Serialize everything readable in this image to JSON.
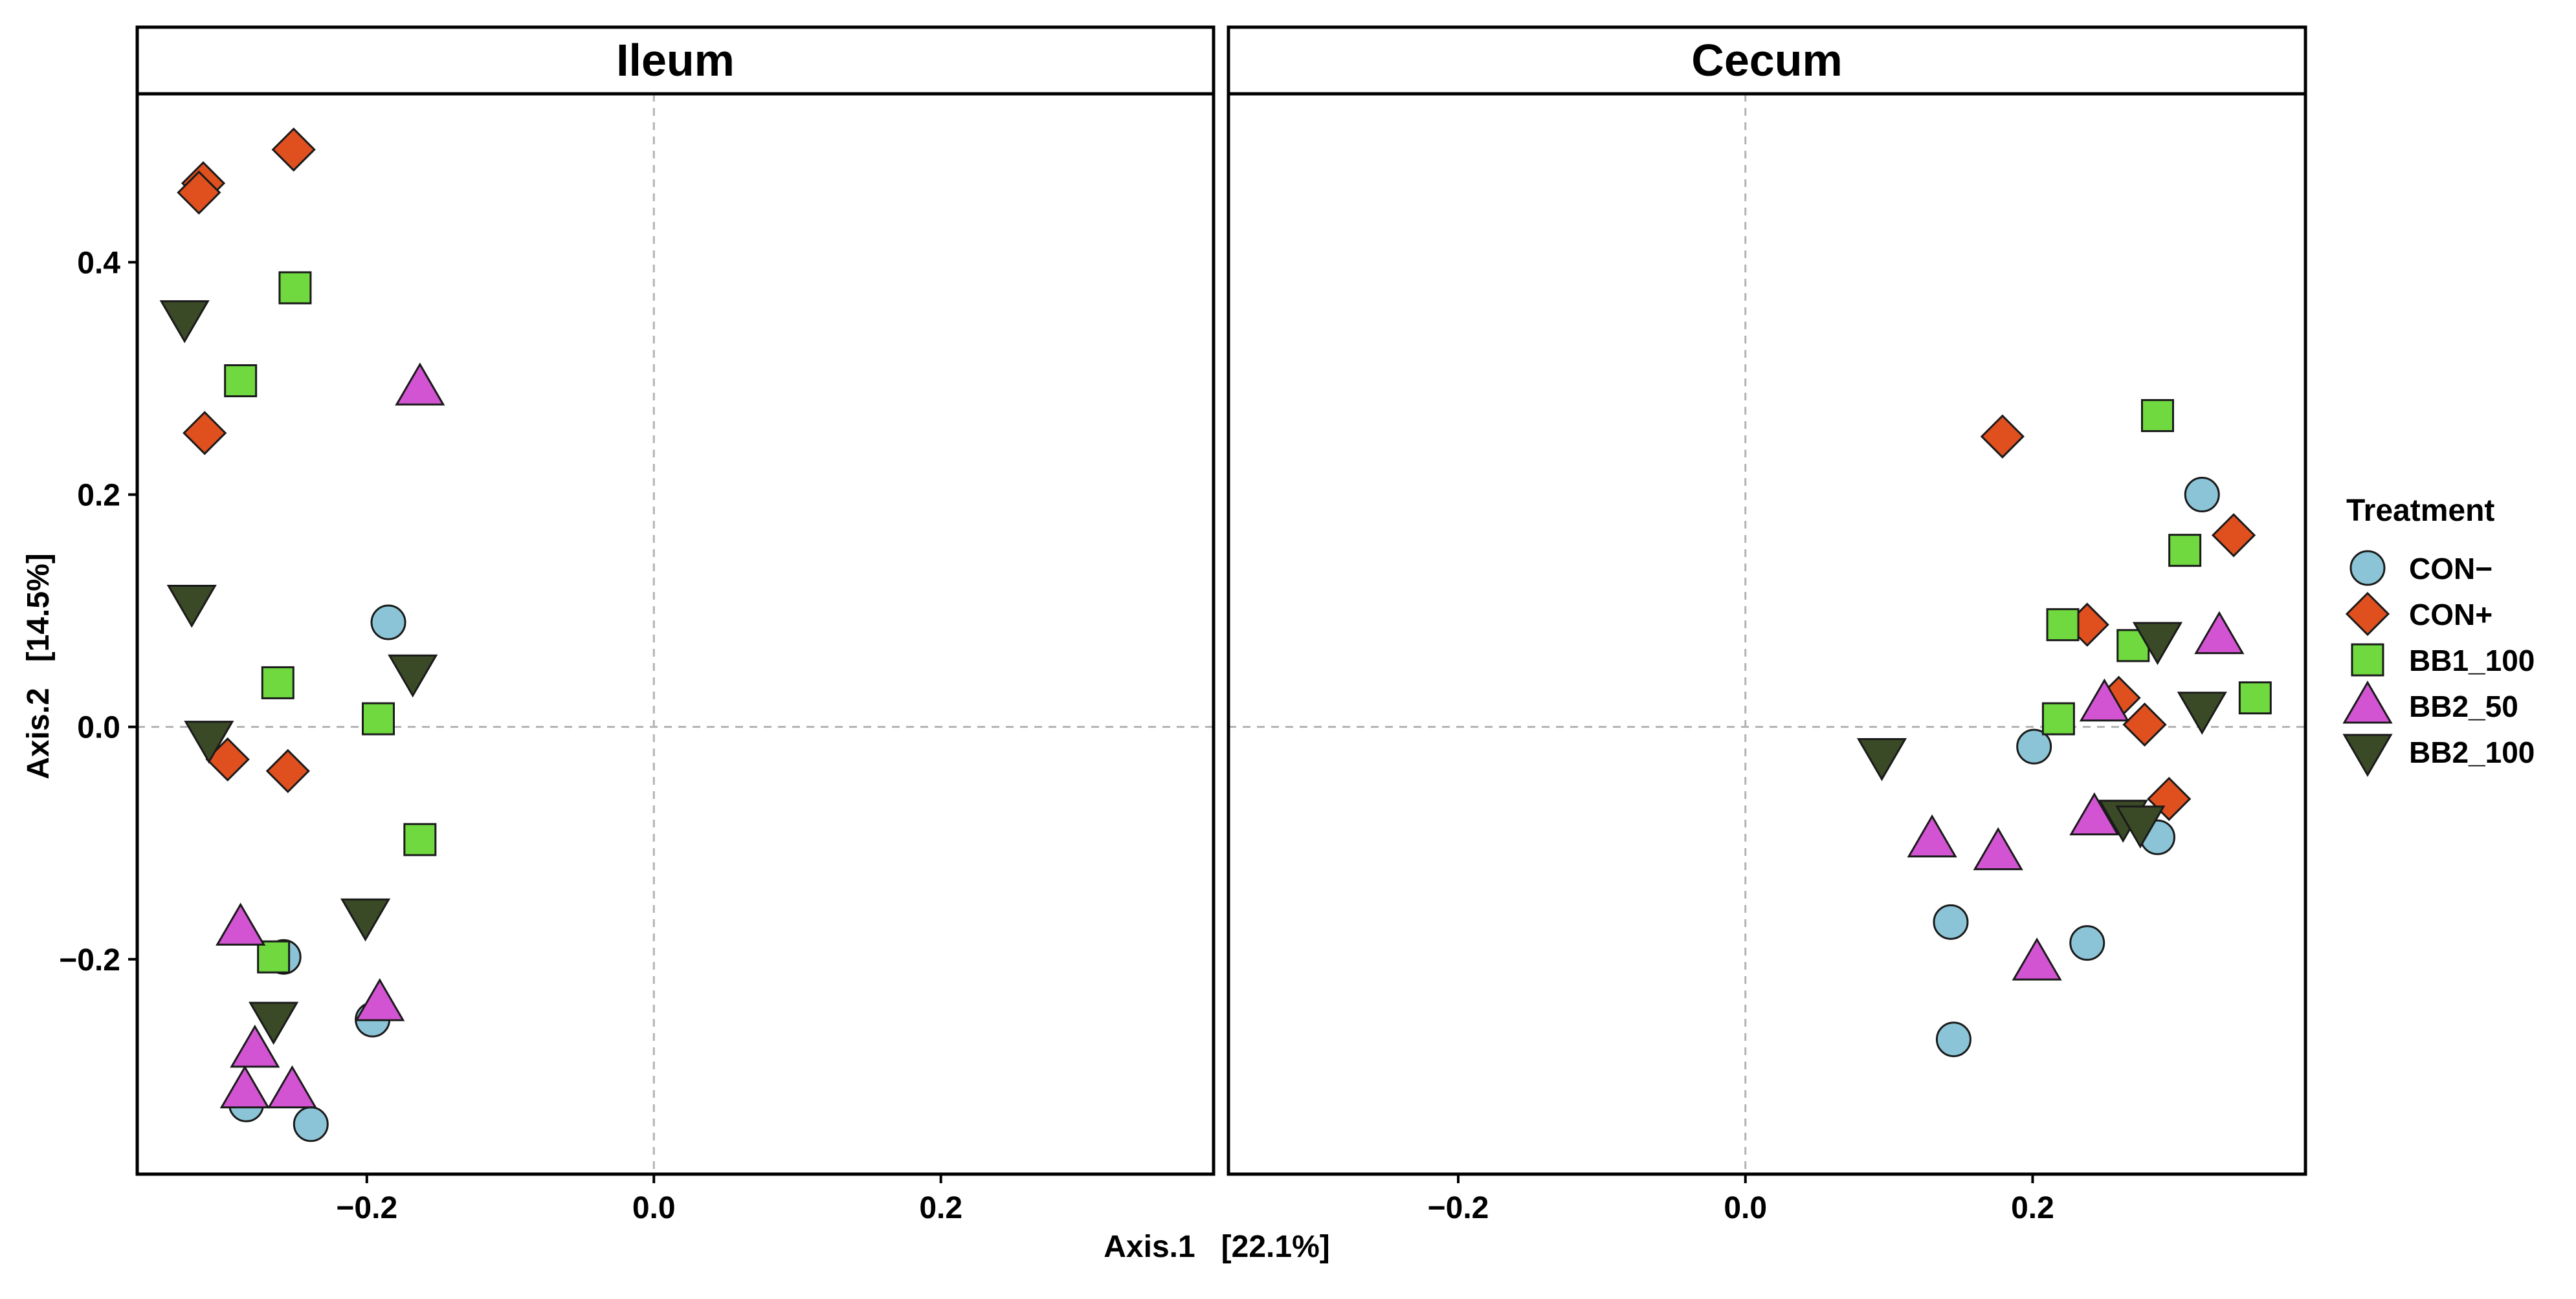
{
  "chart_data": {
    "type": "scatter",
    "xlabel": "Axis.1   [22.1%]",
    "ylabel": "Axis.2   [14.5%]",
    "xlim": [
      -0.36,
      0.39
    ],
    "ylim": [
      -0.385,
      0.545
    ],
    "xticks": [
      -0.2,
      0.0,
      0.2
    ],
    "xtick_labels": [
      "−0.2",
      "0.0",
      "0.2"
    ],
    "yticks": [
      -0.2,
      0.0,
      0.2,
      0.4
    ],
    "ytick_labels": [
      "−0.2",
      "0.0",
      "0.2",
      "0.4"
    ],
    "grid": false,
    "zero_lines": true,
    "legend": {
      "title": "Treatment",
      "placement": "right",
      "entries": [
        {
          "label": "CON−",
          "shape": "circle",
          "color": "#8ac4d6"
        },
        {
          "label": "CON+",
          "shape": "diamond",
          "color": "#e0501f"
        },
        {
          "label": "BB1_100",
          "shape": "square",
          "color": "#6fd93f"
        },
        {
          "label": "BB2_50",
          "shape": "triangle-up",
          "color": "#d354d3"
        },
        {
          "label": "BB2_100",
          "shape": "triangle-down",
          "color": "#3a4a26"
        }
      ]
    },
    "panels": [
      {
        "title": "Ileum",
        "series": [
          {
            "treatment": "CON−",
            "points": [
              [
                -0.185,
                0.09
              ],
              [
                -0.258,
                -0.198
              ],
              [
                -0.196,
                -0.252
              ],
              [
                -0.284,
                -0.325
              ],
              [
                -0.239,
                -0.342
              ]
            ]
          },
          {
            "treatment": "CON+",
            "points": [
              [
                -0.251,
                0.497
              ],
              [
                -0.314,
                0.468
              ],
              [
                -0.317,
                0.46
              ],
              [
                -0.313,
                0.253
              ],
              [
                -0.297,
                -0.028
              ],
              [
                -0.255,
                -0.038
              ]
            ]
          },
          {
            "treatment": "BB1_100",
            "points": [
              [
                -0.25,
                0.378
              ],
              [
                -0.288,
                0.298
              ],
              [
                -0.262,
                0.038
              ],
              [
                -0.192,
                0.007
              ],
              [
                -0.163,
                -0.097
              ],
              [
                -0.265,
                -0.198
              ]
            ]
          },
          {
            "treatment": "BB2_50",
            "points": [
              [
                -0.163,
                0.292
              ],
              [
                -0.288,
                -0.173
              ],
              [
                -0.278,
                -0.278
              ],
              [
                -0.285,
                -0.313
              ],
              [
                -0.252,
                -0.313
              ],
              [
                -0.191,
                -0.238
              ]
            ]
          },
          {
            "treatment": "BB2_100",
            "points": [
              [
                -0.327,
                0.352
              ],
              [
                -0.322,
                0.107
              ],
              [
                -0.31,
                -0.01
              ],
              [
                -0.168,
                0.047
              ],
              [
                -0.201,
                -0.163
              ],
              [
                -0.265,
                -0.252
              ]
            ]
          }
        ]
      },
      {
        "title": "Cecum",
        "series": [
          {
            "treatment": "CON−",
            "points": [
              [
                0.318,
                0.2
              ],
              [
                0.201,
                -0.017
              ],
              [
                0.287,
                -0.095
              ],
              [
                0.143,
                -0.168
              ],
              [
                0.238,
                -0.186
              ],
              [
                0.145,
                -0.269
              ]
            ]
          },
          {
            "treatment": "CON+",
            "points": [
              [
                0.179,
                0.25
              ],
              [
                0.34,
                0.165
              ],
              [
                0.238,
                0.088
              ],
              [
                0.26,
                0.025
              ],
              [
                0.278,
                0.002
              ],
              [
                0.295,
                -0.062
              ]
            ]
          },
          {
            "treatment": "BB1_100",
            "points": [
              [
                0.287,
                0.268
              ],
              [
                0.306,
                0.152
              ],
              [
                0.221,
                0.088
              ],
              [
                0.27,
                0.07
              ],
              [
                0.355,
                0.025
              ],
              [
                0.218,
                0.007
              ]
            ]
          },
          {
            "treatment": "BB2_50",
            "points": [
              [
                0.33,
                0.078
              ],
              [
                0.25,
                0.02
              ],
              [
                0.243,
                -0.078
              ],
              [
                0.13,
                -0.097
              ],
              [
                0.176,
                -0.108
              ],
              [
                0.203,
                -0.203
              ]
            ]
          },
          {
            "treatment": "BB2_100",
            "points": [
              [
                0.095,
                -0.025
              ],
              [
                0.287,
                0.075
              ],
              [
                0.318,
                0.015
              ],
              [
                0.263,
                -0.078
              ],
              [
                0.275,
                -0.083
              ]
            ]
          }
        ]
      }
    ]
  }
}
